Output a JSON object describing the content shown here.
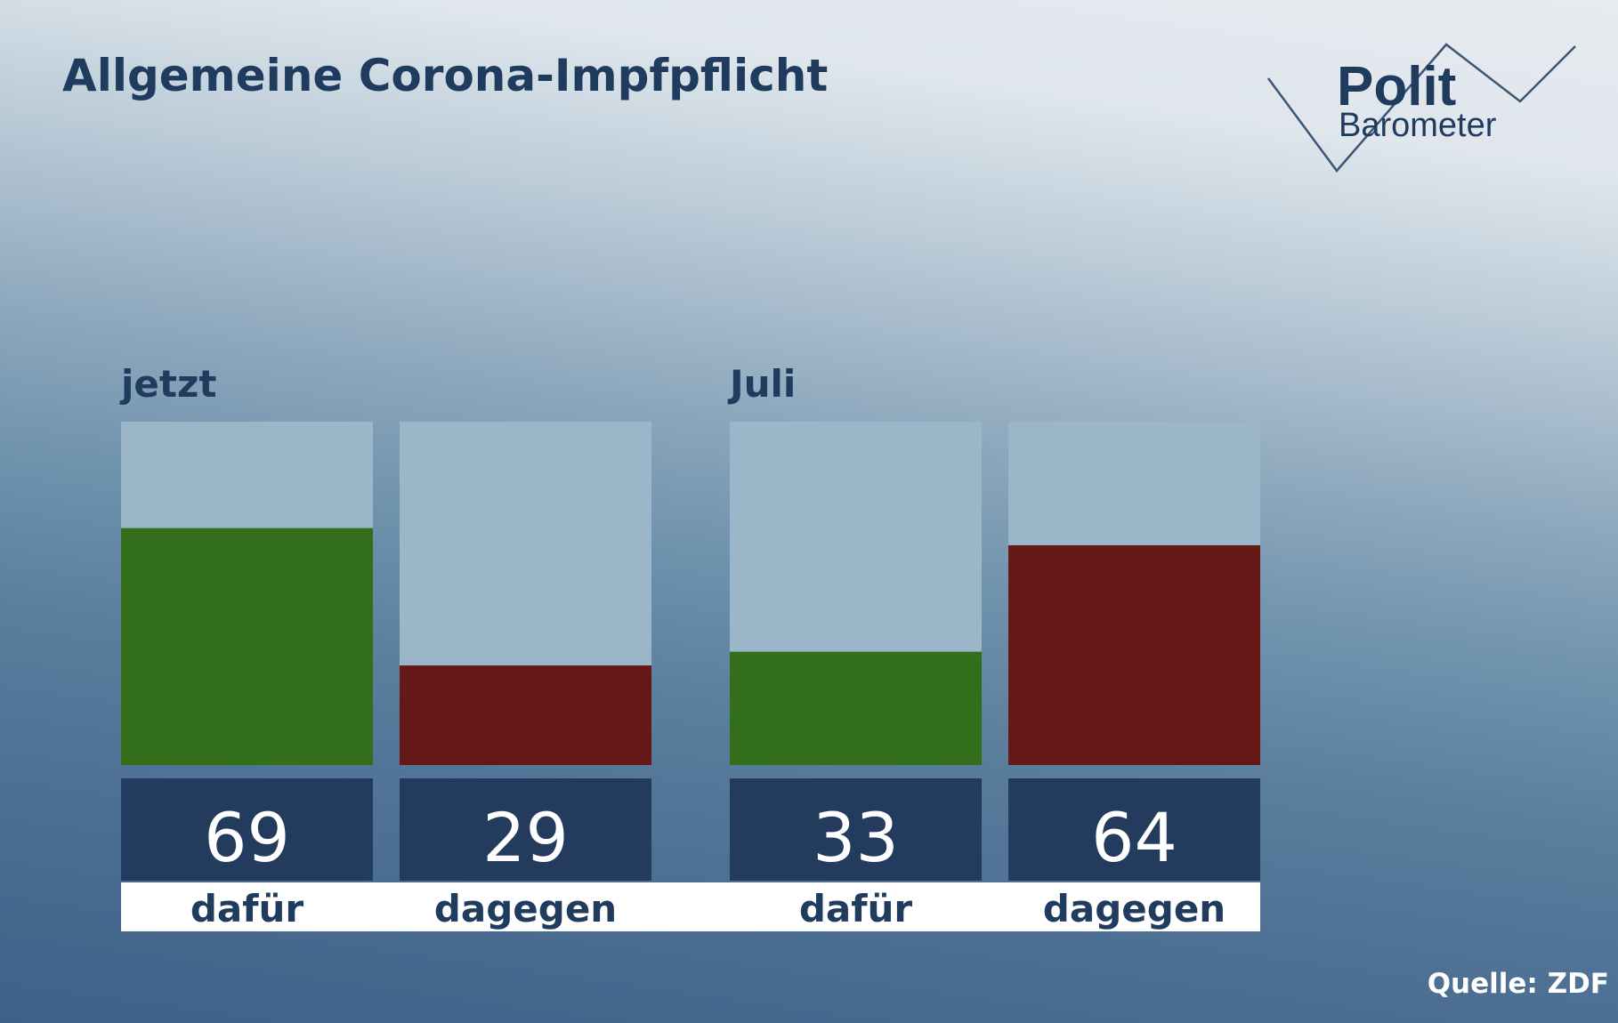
{
  "title": "Allgemeine Corona-Impfpflicht",
  "source": "Quelle: ZDF",
  "logo": {
    "line1": "Polit",
    "line2": "Barometer",
    "icon": "zigzag-line-icon"
  },
  "colors": {
    "dafuer": "#336f1b",
    "dagegen": "#661816",
    "track": "#9bb6c9",
    "value_box": "#233c5e",
    "label_strip": "#ffffff",
    "text_dark": "#1f3b5e"
  },
  "chart_data": {
    "type": "bar",
    "ylim": [
      0,
      100
    ],
    "groups": [
      {
        "label": "jetzt",
        "bars": [
          {
            "category": "dafür",
            "value": 69
          },
          {
            "category": "dagegen",
            "value": 29
          }
        ]
      },
      {
        "label": "Juli",
        "bars": [
          {
            "category": "dafür",
            "value": 33
          },
          {
            "category": "dagegen",
            "value": 64
          }
        ]
      }
    ]
  }
}
